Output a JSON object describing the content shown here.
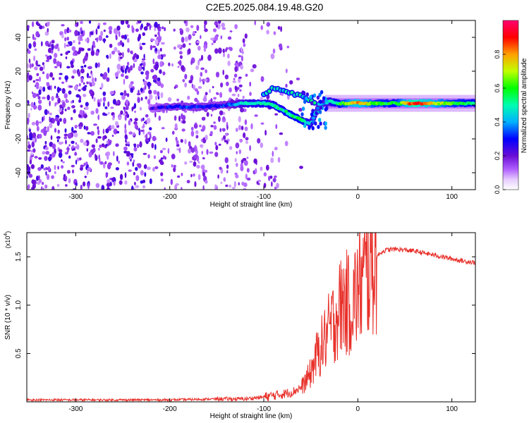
{
  "title": "C2E5.2025.084.19.48.G20",
  "chart_data": [
    {
      "type": "heatmap",
      "xlabel": "Height of straight line (km)",
      "ylabel": "Frequency (Hz)",
      "xlim": [
        -352,
        125
      ],
      "ylim": [
        -50,
        50
      ],
      "x_ticks": [
        -300,
        -200,
        -100,
        0,
        100
      ],
      "y_ticks": [
        -40,
        -20,
        0,
        20,
        40
      ],
      "colorbar": {
        "label": "Normalized spectral amplitude",
        "range": [
          0,
          1
        ],
        "ticks": [
          "0.0",
          "0.2",
          "0.4",
          "0.6",
          "0.8"
        ],
        "colors": [
          "#ffffff",
          "#b060ff",
          "#6a0dd6",
          "#0000ff",
          "#00b0ff",
          "#00ff40",
          "#ffff00",
          "#ff8000",
          "#ff0000",
          "#ff0060"
        ]
      },
      "ridge": {
        "x": [
          -220,
          -200,
          -180,
          -160,
          -140,
          -120,
          -100,
          -90,
          -80,
          -70,
          -60,
          -50,
          -40,
          -30,
          -20,
          0,
          20,
          40,
          60,
          80,
          100,
          125
        ],
        "freq": [
          -2,
          -1,
          -1,
          -1,
          0,
          1,
          1,
          0,
          -3,
          -6,
          -9,
          -11,
          1,
          2,
          1,
          1,
          1,
          1,
          1,
          1,
          1,
          1
        ],
        "amplitude": [
          0.2,
          0.3,
          0.3,
          0.3,
          0.3,
          0.45,
          0.5,
          0.5,
          0.5,
          0.55,
          0.55,
          0.45,
          0.4,
          0.45,
          0.55,
          0.8,
          0.6,
          0.55,
          0.9,
          0.75,
          0.6,
          0.55
        ]
      },
      "upper_branch": {
        "x": [
          -100,
          -90,
          -80,
          -70,
          -60,
          -50,
          -45
        ],
        "freq": [
          6,
          10,
          9,
          7,
          5,
          3,
          1
        ]
      }
    },
    {
      "type": "line",
      "xlabel": "Height of straight line (km)",
      "ylabel": "SNR (10 * v/v)",
      "y_multiplier": "(x10",
      "y_multiplier_exp": "4",
      "y_multiplier_close": ")",
      "xlim": [
        -352,
        125
      ],
      "ylim": [
        0,
        1.75
      ],
      "x_ticks": [
        -300,
        -200,
        -100,
        0,
        100
      ],
      "y_ticks": [
        0.5,
        1.0,
        1.5
      ],
      "y_tick_labels": [
        "0.5",
        "1.0",
        "1.5"
      ],
      "color": "#e8302a",
      "series": [
        {
          "x": [
            -352,
            -300,
            -250,
            -200,
            -150,
            -120,
            -100,
            -80,
            -70,
            -60,
            -55,
            -50,
            -45,
            -40,
            -35,
            -30,
            -25,
            -20,
            -15,
            -10,
            -5,
            0,
            5,
            10,
            15,
            20,
            25,
            30,
            40,
            50,
            60,
            70,
            80,
            90,
            100,
            110,
            125
          ],
          "y": [
            0.02,
            0.02,
            0.02,
            0.02,
            0.03,
            0.03,
            0.05,
            0.08,
            0.1,
            0.15,
            0.22,
            0.3,
            0.45,
            0.55,
            0.65,
            0.75,
            0.85,
            0.95,
            1.05,
            1.0,
            1.05,
            1.15,
            1.25,
            1.35,
            1.45,
            1.5,
            1.55,
            1.57,
            1.58,
            1.57,
            1.56,
            1.54,
            1.52,
            1.5,
            1.48,
            1.46,
            1.44
          ]
        }
      ]
    }
  ]
}
